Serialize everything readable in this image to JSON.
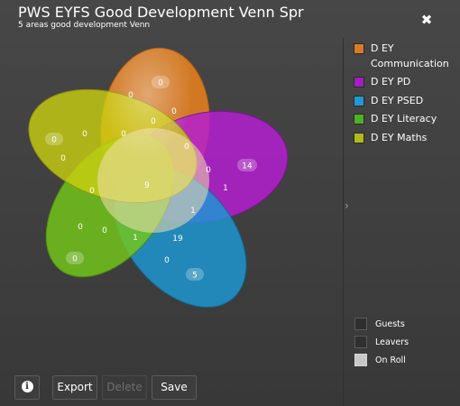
{
  "header": {
    "title": "PWS EYFS Good Development Venn Spr",
    "subtitle": "5 areas good development Venn",
    "close_glyph": "✖"
  },
  "legend": [
    {
      "label": "D EY Communication",
      "color": "#d97a24"
    },
    {
      "label": "D EY PD",
      "color": "#a21fc0"
    },
    {
      "label": "D EY PSED",
      "color": "#1f9ad1"
    },
    {
      "label": "D EY Literacy",
      "color": "#4eb125"
    },
    {
      "label": "D EY Maths",
      "color": "#b3b81c"
    }
  ],
  "venn": {
    "petal_colors": [
      "#e6801f",
      "#b41fd0",
      "#1c98d4",
      "#74c81a",
      "#cbcf10"
    ],
    "region_values": {
      "communication_only": "0",
      "pd_only": "14",
      "psed_only": "5",
      "literacy_only": "0",
      "maths_only": "0",
      "center": "9",
      "comm_maths": "0",
      "comm_a": "0",
      "comm_b": "0",
      "comm_pd": "0",
      "pd_a": "0",
      "pd_b": "1",
      "psed_pd": "19",
      "psed_a": "0",
      "psed_b": "1",
      "lit_a": "0",
      "lit_b": "0",
      "lit_c": "0",
      "maths_a": "0",
      "maths_b": "0",
      "maths_c": "0"
    }
  },
  "filters": [
    {
      "label": "Guests",
      "checked": false
    },
    {
      "label": "Leavers",
      "checked": false
    },
    {
      "label": "On Roll",
      "checked": true
    }
  ],
  "footer": {
    "info_glyph": "i",
    "export_label": "Export",
    "delete_label": "Delete",
    "save_label": "Save"
  },
  "collapse_glyph": "›"
}
